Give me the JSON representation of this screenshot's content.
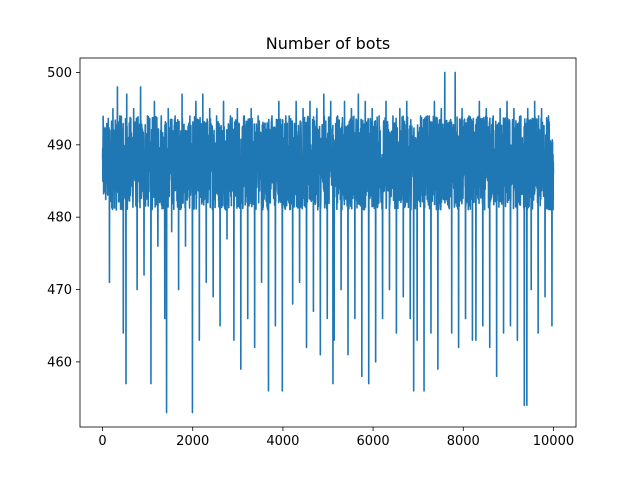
{
  "chart_data": {
    "type": "line",
    "title": "Number of bots",
    "xlabel": "",
    "ylabel": "",
    "xlim": [
      -500,
      10500
    ],
    "ylim": [
      451,
      502
    ],
    "x_ticks": [
      0,
      2000,
      4000,
      6000,
      8000,
      10000
    ],
    "x_tick_labels": [
      "0",
      "2000",
      "4000",
      "6000",
      "8000",
      "10000"
    ],
    "y_ticks": [
      460,
      470,
      480,
      490,
      500
    ],
    "y_tick_labels": [
      "460",
      "470",
      "480",
      "490",
      "500"
    ],
    "grid": false,
    "legend": "none",
    "series": [
      {
        "color": "#1f77b4",
        "x_start": 0,
        "x_end": 10000,
        "typical_range": [
          481,
          494
        ],
        "values_overview": [
          488,
          471,
          495,
          481,
          494,
          464,
          497,
          483,
          495,
          470,
          498,
          472,
          494,
          457,
          496,
          476,
          494,
          466,
          495,
          478,
          494,
          470,
          497,
          476,
          493,
          453,
          496,
          463,
          497,
          471,
          495,
          469,
          494,
          465,
          496,
          477,
          494,
          463,
          495,
          459,
          494,
          466,
          495,
          462,
          494,
          471,
          493,
          456,
          494,
          465,
          496,
          456,
          494,
          468,
          496,
          471,
          495,
          462,
          496,
          467,
          495,
          461,
          497,
          466,
          496,
          463,
          494,
          470,
          496,
          461,
          495,
          466,
          497,
          458,
          496,
          457,
          495,
          460,
          494,
          466,
          496,
          470,
          494,
          464,
          495,
          469,
          496,
          466,
          495,
          463,
          494,
          456,
          494,
          464,
          496,
          459,
          495,
          467,
          493,
          464,
          500,
          462,
          495,
          466,
          494,
          463,
          496,
          465,
          495,
          462,
          494,
          458,
          495,
          464,
          496,
          465,
          495,
          463,
          494,
          454,
          495,
          470,
          496,
          464,
          495,
          469,
          494,
          465,
          486
        ],
        "notable_points": [
          {
            "x": 1420,
            "y": 453
          },
          {
            "x": 520,
            "y": 457
          },
          {
            "x": 5110,
            "y": 457
          },
          {
            "x": 6900,
            "y": 456
          },
          {
            "x": 9410,
            "y": 454
          },
          {
            "x": 7590,
            "y": 500
          },
          {
            "x": 330,
            "y": 498
          }
        ]
      }
    ]
  }
}
